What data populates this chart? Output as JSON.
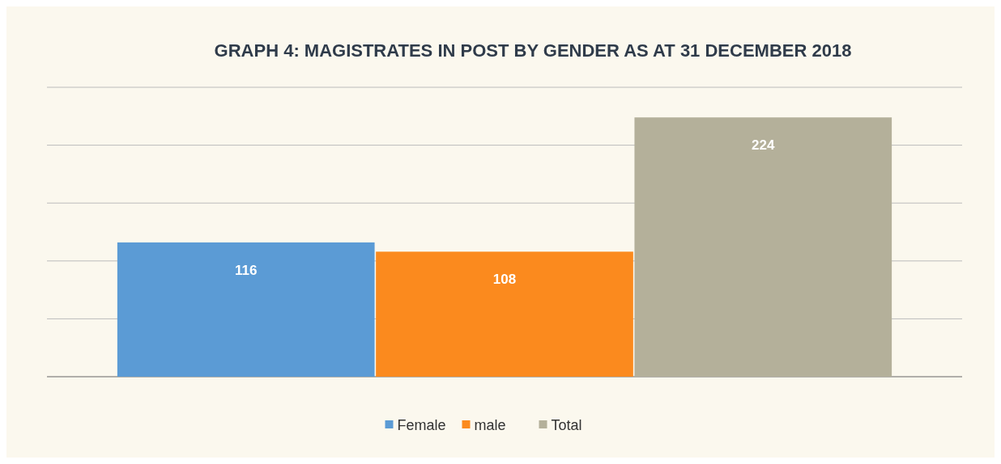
{
  "chart_data": {
    "type": "bar",
    "title": "GRAPH 4: MAGISTRATES IN POST BY GENDER AS AT 31 DECEMBER 2018",
    "categories": [
      null
    ],
    "series": [
      {
        "name": "Female",
        "color": "#5b9bd5",
        "values": [
          116
        ]
      },
      {
        "name": "male",
        "color": "#fb8a1e",
        "values": [
          108
        ]
      },
      {
        "name": "Total",
        "color": "#b4b09a",
        "values": [
          224
        ]
      }
    ],
    "ylim": [
      0,
      250
    ],
    "yticks": [
      {
        "value": 0,
        "label": null
      },
      {
        "value": 50,
        "label": null
      },
      {
        "value": 100,
        "label": null
      },
      {
        "value": 150,
        "label": null
      },
      {
        "value": 200,
        "label": null
      },
      {
        "value": 250,
        "label": null
      }
    ],
    "grid": "y",
    "legend": "bottom",
    "data_labels": true
  }
}
